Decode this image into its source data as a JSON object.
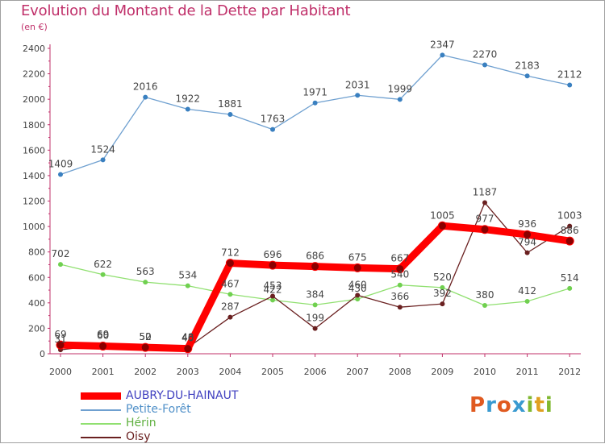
{
  "header": {
    "title": "Evolution du Montant de la Dette par Habitant",
    "unit": "(en €)"
  },
  "chart_data": {
    "type": "line",
    "title": "Evolution du Montant de la Dette par Habitant",
    "subtitle": "(en €)",
    "xlabel": "",
    "ylabel": "",
    "x": [
      "2000",
      "2001",
      "2002",
      "2003",
      "2004",
      "2005",
      "2006",
      "2007",
      "2008",
      "2009",
      "2010",
      "2011",
      "2012"
    ],
    "ylim": [
      0,
      2400
    ],
    "yticks": [
      0,
      200,
      400,
      600,
      800,
      1000,
      1200,
      1400,
      1600,
      1800,
      2000,
      2200,
      2400
    ],
    "grid": false,
    "legend_position": "bottom-left",
    "series": [
      {
        "name": "AUBRY-DU-HAINAUT",
        "color": "#ff0000",
        "values": [
          69,
          60,
          50,
          40,
          712,
          696,
          686,
          675,
          667,
          1005,
          977,
          936,
          886
        ]
      },
      {
        "name": "Petite-Forêt",
        "color": "#6fa0d0",
        "values": [
          1409,
          1524,
          2016,
          1922,
          1881,
          1763,
          1971,
          2031,
          1999,
          2347,
          2270,
          2183,
          2112
        ]
      },
      {
        "name": "Hérin",
        "color": "#90e070",
        "values": [
          702,
          622,
          563,
          534,
          467,
          422,
          384,
          430,
          540,
          520,
          380,
          412,
          514
        ]
      },
      {
        "name": "Oisy",
        "color": "#6a2020",
        "values": [
          31,
          69,
          52,
          48,
          287,
          453,
          199,
          460,
          366,
          392,
          1187,
          794,
          1003
        ]
      }
    ]
  },
  "logo": {
    "letters": [
      "P",
      "r",
      "o",
      "x",
      "i",
      "t",
      "i"
    ],
    "colors": [
      "#e05a20",
      "#3a9ad0",
      "#e05a20",
      "#3a9ad0",
      "#80b830",
      "#e0a020",
      "#80b830"
    ]
  }
}
